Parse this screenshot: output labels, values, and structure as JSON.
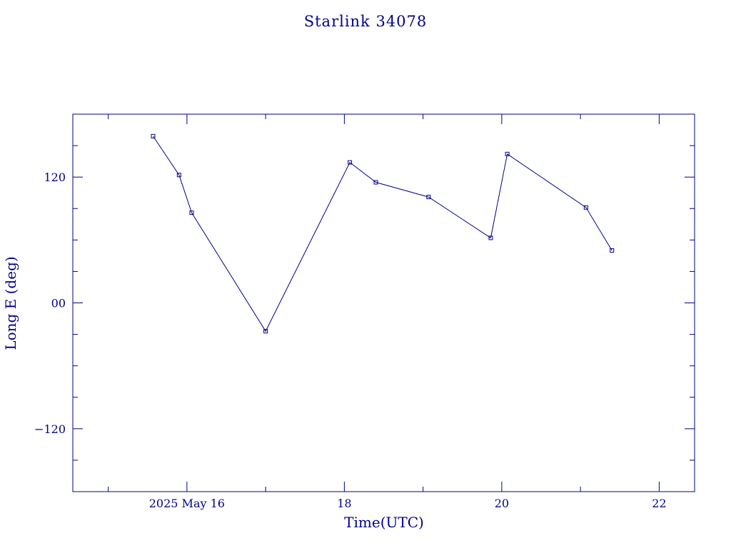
{
  "chart_data": {
    "type": "line",
    "title": "Starlink 34078",
    "xlabel": "Time(UTC)",
    "ylabel": "Long E (deg)",
    "x_unit": "day of May 2025",
    "xlim": [
      14.55,
      22.45
    ],
    "ylim": [
      -180,
      180
    ],
    "x_major_ticks": [
      16,
      18,
      20,
      22
    ],
    "x_tick_labels": [
      "2025 May 16",
      "18",
      "20",
      "22"
    ],
    "x_minor_ticks": [
      15,
      17,
      19,
      21
    ],
    "y_major_ticks": [
      -120,
      0,
      120
    ],
    "y_tick_labels": [
      "−120",
      "00",
      "120"
    ],
    "y_minor_ticks": [
      -150,
      -90,
      -60,
      -30,
      30,
      60,
      90,
      150
    ],
    "grid": false,
    "color": "#00008b",
    "series": [
      {
        "x": [
          15.57,
          15.9,
          16.06,
          17.0,
          18.07,
          18.4,
          19.07,
          19.86,
          20.07,
          21.07,
          21.4
        ],
        "y": [
          159,
          122,
          86,
          -27,
          134,
          115,
          101,
          62,
          142,
          91,
          50
        ]
      }
    ]
  }
}
